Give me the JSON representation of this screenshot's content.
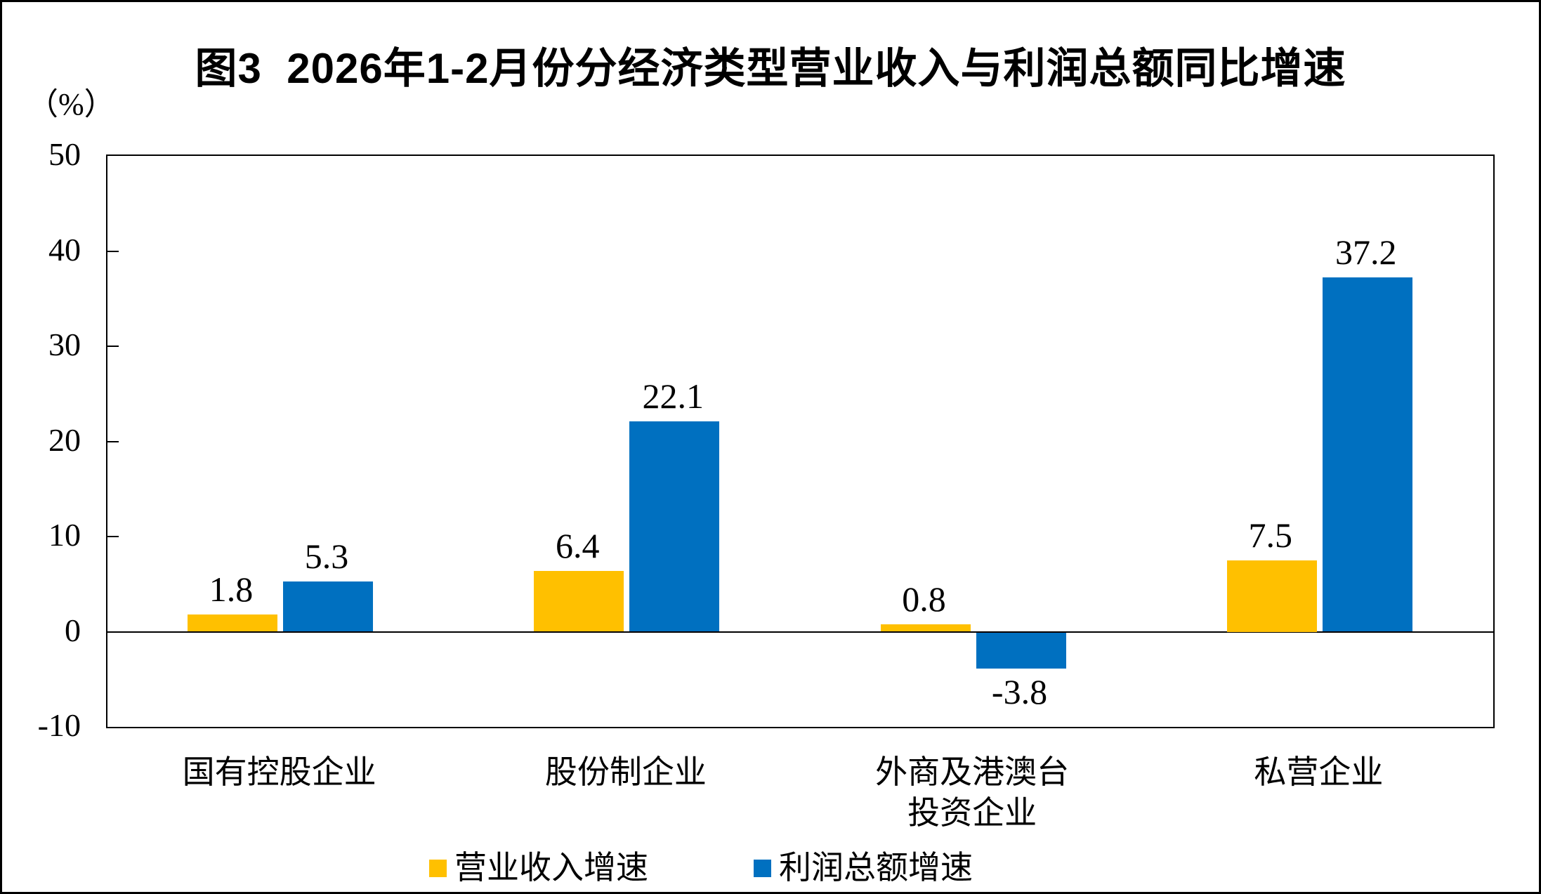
{
  "figure": {
    "title": "图3  2026年1-2月份分经济类型营业收入与利润总额同比增速",
    "unit_label": "（%）"
  },
  "chart_data": {
    "type": "bar",
    "title": "图3  2026年1-2月份分经济类型营业收入与利润总额同比增速",
    "ylabel": "（%）",
    "categories": [
      {
        "label": "国有控股企业",
        "lines": [
          "国有控股企业"
        ]
      },
      {
        "label": "股份制企业",
        "lines": [
          "股份制企业"
        ]
      },
      {
        "label": "外商及港澳台投资企业",
        "lines": [
          "外商及港澳台",
          "投资企业"
        ]
      },
      {
        "label": "私营企业",
        "lines": [
          "私营企业"
        ]
      }
    ],
    "series": [
      {
        "name": "营业收入增速",
        "color": "#FFC000",
        "values": [
          1.8,
          6.4,
          0.8,
          7.5
        ]
      },
      {
        "name": "利润总额增速",
        "color": "#0070C0",
        "values": [
          5.3,
          22.1,
          -3.8,
          37.2
        ]
      }
    ],
    "ylim": [
      -10,
      50
    ],
    "yticks": [
      50,
      40,
      30,
      20,
      10,
      0,
      -10
    ],
    "grid": false,
    "legend_position": "bottom",
    "value_label_decimals": 1
  }
}
